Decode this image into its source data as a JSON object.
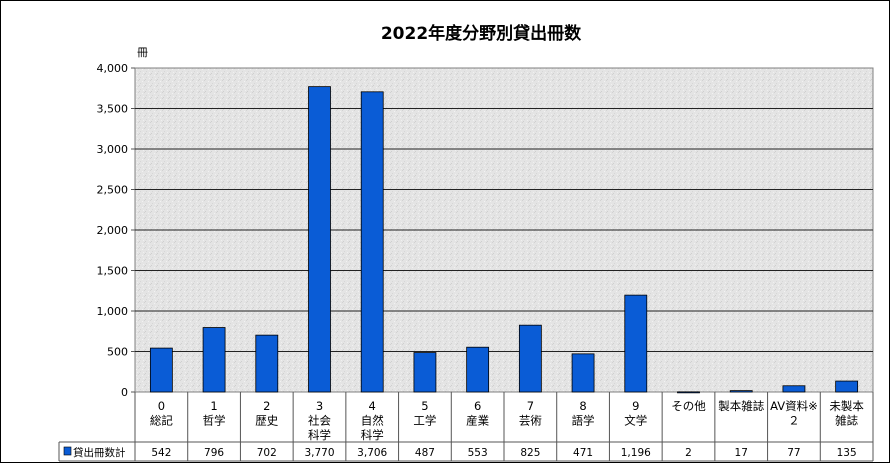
{
  "chart_data": {
    "type": "bar",
    "title": "2022年度分野別貸出冊数",
    "ylabel": "冊",
    "ylim": [
      0,
      4000
    ],
    "yticks": [
      "0",
      "500",
      "1,000",
      "1,500",
      "2,000",
      "2,500",
      "3,000",
      "3,500",
      "4,000"
    ],
    "grid": true,
    "bar_color": "#0a5cd6",
    "categories": [
      [
        "0",
        "総記"
      ],
      [
        "1",
        "哲学"
      ],
      [
        "2",
        "歴史"
      ],
      [
        "3",
        "社会",
        "科学"
      ],
      [
        "4",
        "自然",
        "科学"
      ],
      [
        "5",
        "工学"
      ],
      [
        "6",
        "産業"
      ],
      [
        "7",
        "芸術"
      ],
      [
        "8",
        "語学"
      ],
      [
        "9",
        "文学"
      ],
      [
        "その他"
      ],
      [
        "製本雑誌"
      ],
      [
        "AV資料※",
        "２"
      ],
      [
        "未製本",
        "雑誌"
      ]
    ],
    "series": [
      {
        "name": "貸出冊数計",
        "values": [
          542,
          796,
          702,
          3770,
          3706,
          487,
          553,
          825,
          471,
          1196,
          2,
          17,
          77,
          135
        ],
        "labels": [
          "542",
          "796",
          "702",
          "3,770",
          "3,706",
          "487",
          "553",
          "825",
          "471",
          "1,196",
          "2",
          "17",
          "77",
          "135"
        ]
      }
    ]
  }
}
